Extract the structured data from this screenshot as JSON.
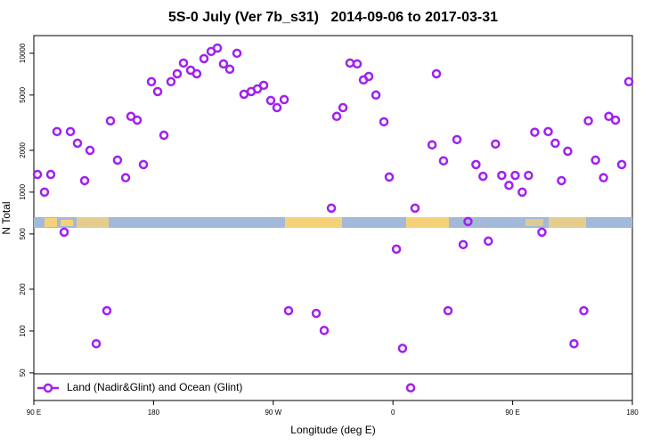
{
  "chart_data": {
    "type": "scatter",
    "title": "5S-0 July (Ver 7b_s31)   2014-09-06 to 2017-03-31",
    "x_label": "Longitude (deg E)",
    "y_label": "N Total",
    "log_y": true,
    "legend_position": "bottom-left",
    "xlim": [
      90,
      540
    ],
    "xticks": [
      {
        "value": 90,
        "label": "90 E"
      },
      {
        "value": 180,
        "label": "180"
      },
      {
        "value": 270,
        "label": "90 W"
      },
      {
        "value": 360,
        "label": "0"
      },
      {
        "value": 450,
        "label": "90 E"
      },
      {
        "value": 540,
        "label": "180"
      }
    ],
    "ylim": [
      31.6,
      13400
    ],
    "yticks": [
      50,
      100,
      200,
      500,
      1000,
      2000,
      5000,
      10000
    ],
    "series": [
      {
        "name": "Land (Nadir&Glint) and Ocean (Glint)",
        "color": "#a020f0",
        "x": [
          92.7,
          98,
          102.7,
          107.4,
          112.8,
          117.5,
          122.8,
          128.2,
          132.2,
          136.9,
          144.9,
          147.6,
          152.9,
          159,
          163,
          167.7,
          172.4,
          178.4,
          183.1,
          187.8,
          193.1,
          197.8,
          202.5,
          207.9,
          212.5,
          217.9,
          223.3,
          228,
          232.6,
          237.3,
          242.7,
          248,
          253.4,
          258.1,
          262.8,
          268.1,
          272.8,
          278.2,
          281.5,
          302.3,
          308.3,
          313.7,
          317.7,
          322.4,
          327.7,
          333.1,
          337.8,
          341.8,
          347.2,
          353.2,
          357.2,
          362.6,
          367.2,
          373.3,
          376.6,
          389.4,
          392.7,
          398,
          401.4,
          408.1,
          412.8,
          416.4,
          422.4,
          427.7,
          431.7,
          437.1,
          441.8,
          447.2,
          451.9,
          457.2,
          461.9,
          466.6,
          472,
          476.7,
          482,
          486.7,
          491.4,
          496.1,
          503.5,
          506.9,
          512.3,
          518.3,
          522.3,
          527.3,
          532,
          537.3
        ],
        "values": [
          1340,
          1000,
          1340,
          2730,
          515,
          2730,
          2250,
          1210,
          2000,
          81,
          140,
          3260,
          1700,
          1270,
          3510,
          3300,
          1580,
          6240,
          5300,
          2570,
          6240,
          7120,
          8500,
          7550,
          7120,
          9150,
          10300,
          10900,
          8380,
          7670,
          10000,
          5070,
          5300,
          5540,
          5880,
          4570,
          4060,
          4640,
          140,
          134,
          101,
          767,
          3510,
          4060,
          8500,
          8380,
          6430,
          6810,
          5000,
          3210,
          1285,
          389,
          75,
          39,
          767,
          2190,
          7120,
          1680,
          140,
          2390,
          419,
          614,
          1580,
          1300,
          444,
          2220,
          1320,
          1120,
          1320,
          1000,
          1320,
          2700,
          515,
          2730,
          2250,
          1210,
          1970,
          81,
          140,
          3260,
          1700,
          1270,
          3510,
          3300,
          1580,
          6240
        ]
      }
    ]
  }
}
